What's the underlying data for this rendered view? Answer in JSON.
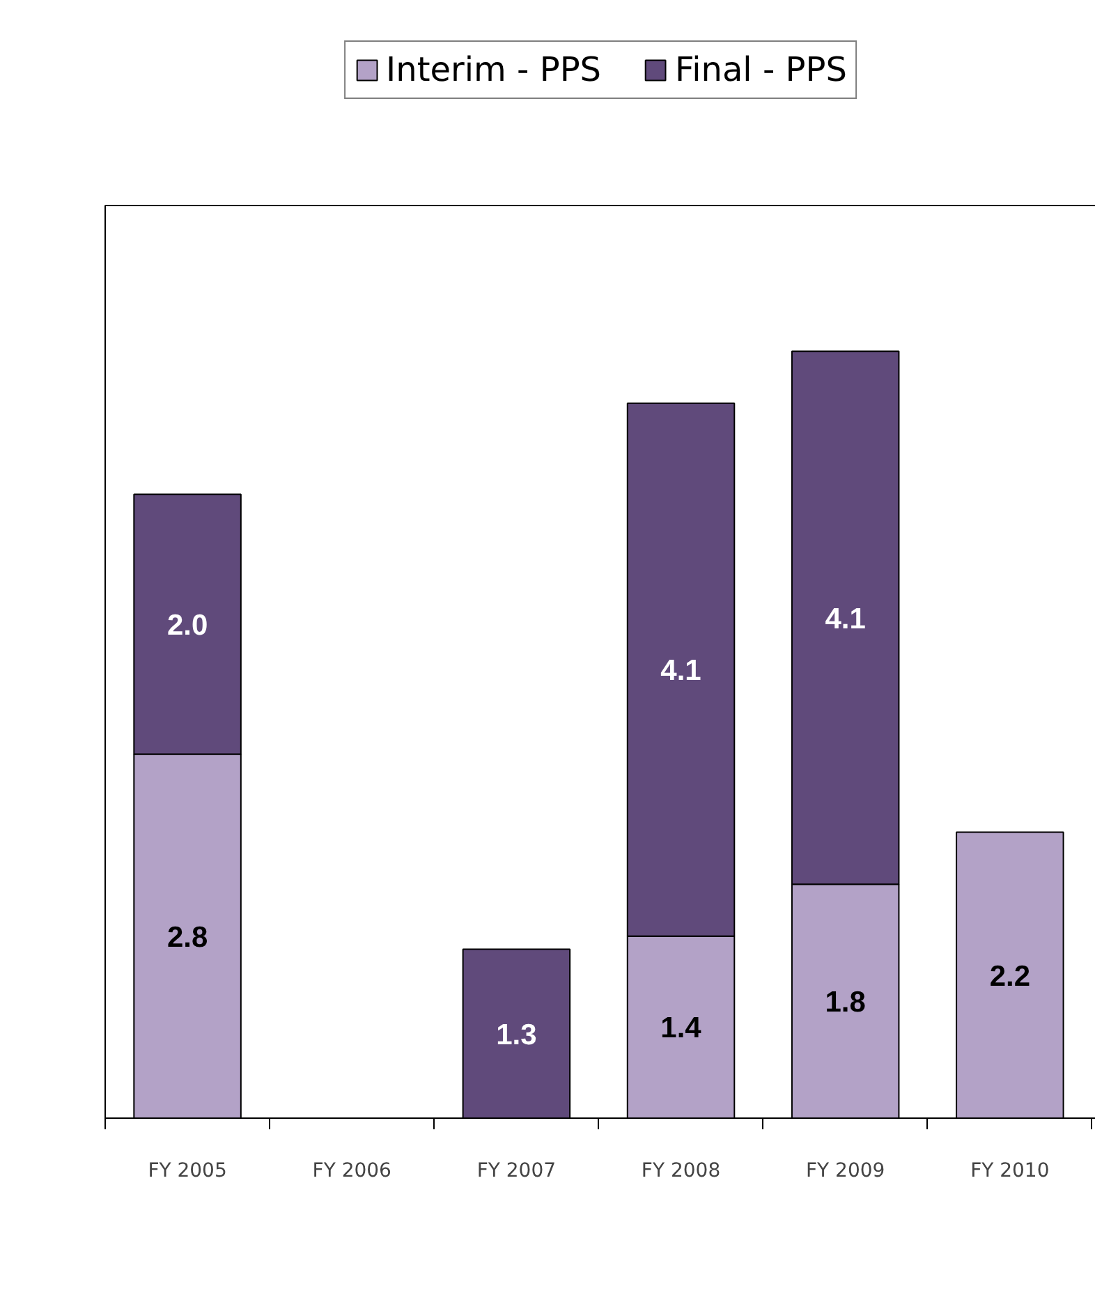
{
  "chart_data": {
    "type": "bar",
    "stacked": true,
    "data_labels": true,
    "grid": false,
    "legend": "top",
    "categories": [
      "FY 2005",
      "FY 2006",
      "FY 2007",
      "FY 2008",
      "FY 2009",
      "FY 2010"
    ],
    "series": [
      {
        "name": "Interim - PPS",
        "color": "#b3a2c7",
        "values": [
          2.8,
          null,
          null,
          1.4,
          1.8,
          2.2
        ],
        "value_labels": [
          "2.8",
          null,
          null,
          "1.4",
          "1.8",
          "2.2"
        ]
      },
      {
        "name": "Final - PPS",
        "color": "#604a7b",
        "values": [
          2.0,
          null,
          1.3,
          4.1,
          4.1,
          null
        ],
        "value_labels": [
          "2.0",
          null,
          "1.3",
          "4.1",
          "4.1",
          null
        ]
      }
    ]
  }
}
